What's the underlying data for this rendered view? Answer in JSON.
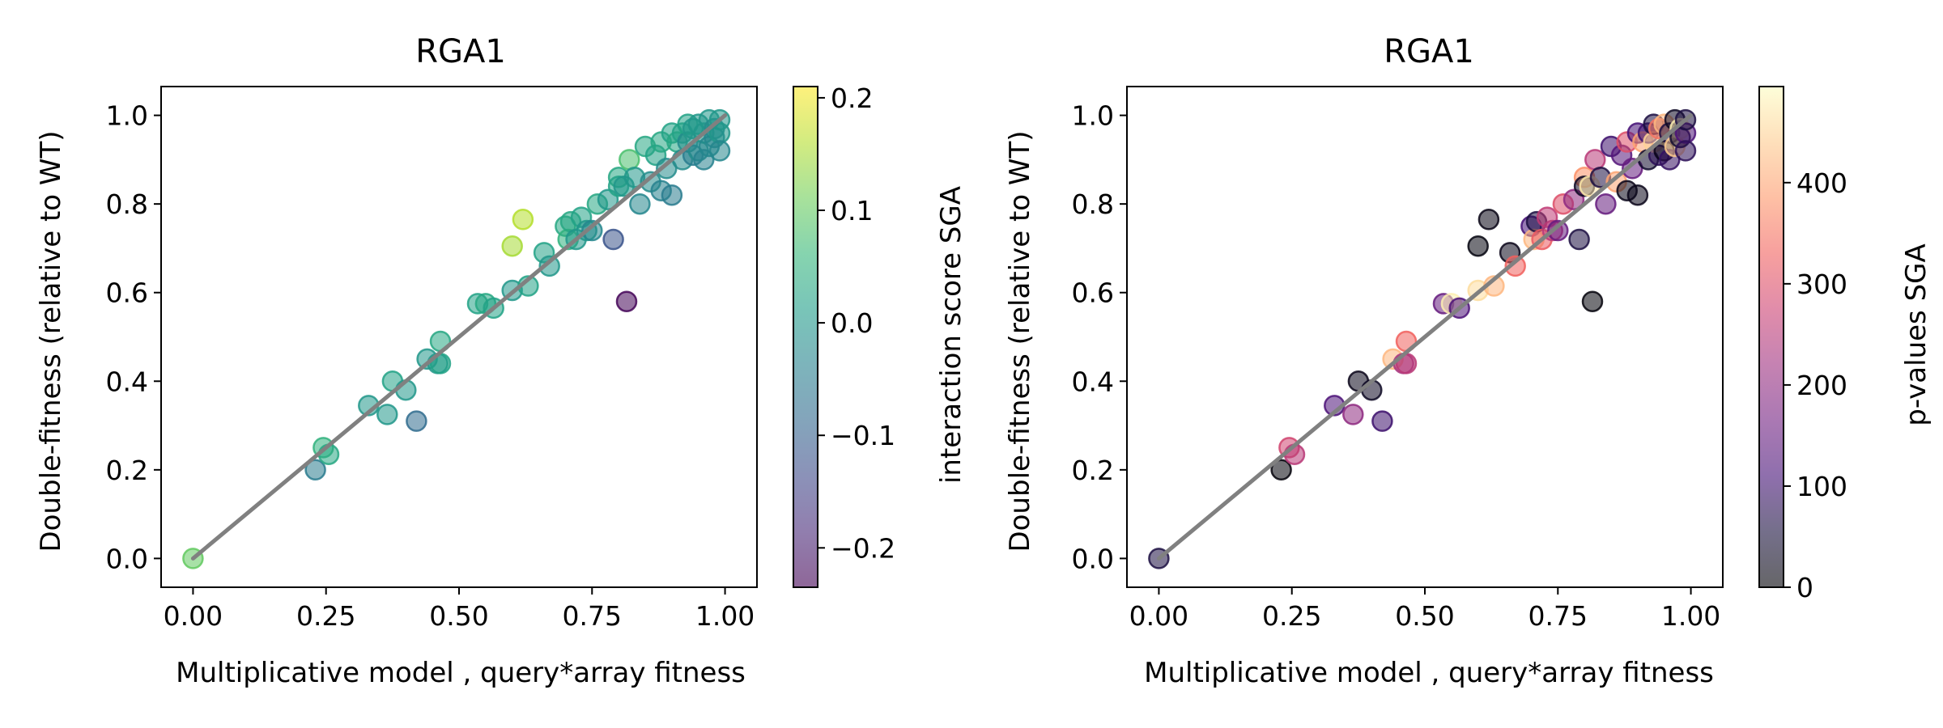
{
  "chart_data": [
    {
      "type": "scatter",
      "title": "RGA1",
      "xlabel": "Multiplicative model , query*array fitness",
      "ylabel": "Double-fitness (relative to WT)",
      "xlim": [
        -0.06,
        1.06
      ],
      "ylim": [
        -0.065,
        1.065
      ],
      "xticks": [
        0.0,
        0.25,
        0.5,
        0.75,
        1.0
      ],
      "xtick_labels": [
        "0.00",
        "0.25",
        "0.50",
        "0.75",
        "1.00"
      ],
      "yticks": [
        0.0,
        0.2,
        0.4,
        0.6,
        0.8,
        1.0
      ],
      "ytick_labels": [
        "0.0",
        "0.2",
        "0.4",
        "0.6",
        "0.8",
        "1.0"
      ],
      "reference_line": {
        "x": [
          0.0,
          1.0
        ],
        "y": [
          0.0,
          1.0
        ],
        "color": "#808080"
      },
      "colorbar": {
        "label": "interaction score SGA",
        "colormap": "viridis",
        "range": [
          -0.235,
          0.21
        ],
        "ticks": [
          -0.2,
          -0.1,
          0.0,
          0.1,
          0.2
        ],
        "tick_labels": [
          "−0.2",
          "−0.1",
          "0.0",
          "0.1",
          "0.2"
        ]
      },
      "grid": false,
      "points": {
        "x": [
          0.0,
          0.23,
          0.245,
          0.255,
          0.33,
          0.365,
          0.375,
          0.4,
          0.42,
          0.44,
          0.46,
          0.465,
          0.465,
          0.535,
          0.55,
          0.565,
          0.6,
          0.6,
          0.62,
          0.63,
          0.66,
          0.67,
          0.7,
          0.705,
          0.71,
          0.72,
          0.73,
          0.74,
          0.75,
          0.76,
          0.78,
          0.79,
          0.8,
          0.8,
          0.81,
          0.815,
          0.82,
          0.83,
          0.84,
          0.85,
          0.86,
          0.87,
          0.88,
          0.88,
          0.89,
          0.9,
          0.9,
          0.91,
          0.92,
          0.92,
          0.93,
          0.93,
          0.94,
          0.94,
          0.95,
          0.95,
          0.96,
          0.96,
          0.97,
          0.97,
          0.98,
          0.98,
          0.99,
          0.99,
          0.99
        ],
        "y": [
          0.0,
          0.2,
          0.25,
          0.235,
          0.345,
          0.325,
          0.4,
          0.38,
          0.31,
          0.45,
          0.44,
          0.49,
          0.44,
          0.575,
          0.575,
          0.565,
          0.605,
          0.705,
          0.765,
          0.615,
          0.69,
          0.66,
          0.75,
          0.72,
          0.76,
          0.72,
          0.77,
          0.74,
          0.74,
          0.8,
          0.81,
          0.72,
          0.86,
          0.84,
          0.84,
          0.58,
          0.9,
          0.86,
          0.8,
          0.93,
          0.85,
          0.91,
          0.83,
          0.94,
          0.88,
          0.96,
          0.82,
          0.94,
          0.9,
          0.96,
          0.94,
          0.98,
          0.97,
          0.91,
          0.92,
          0.98,
          0.96,
          0.9,
          0.93,
          0.99,
          0.97,
          0.95,
          0.96,
          0.99,
          0.92
        ],
        "color_values": [
          0.1,
          -0.05,
          0.05,
          0.03,
          0.0,
          0.0,
          0.02,
          0.0,
          -0.08,
          0.0,
          0.0,
          0.03,
          0.02,
          0.02,
          0.03,
          0.02,
          0.0,
          0.15,
          0.16,
          0.02,
          0.02,
          0.0,
          0.03,
          0.05,
          0.03,
          0.0,
          0.02,
          0.0,
          -0.03,
          0.03,
          0.0,
          -0.12,
          0.03,
          0.02,
          0.0,
          -0.23,
          0.08,
          0.0,
          -0.03,
          0.03,
          -0.02,
          0.02,
          -0.04,
          0.03,
          -0.02,
          0.02,
          -0.05,
          0.03,
          -0.02,
          0.02,
          -0.02,
          0.02,
          0.0,
          -0.05,
          -0.02,
          0.0,
          0.0,
          -0.04,
          -0.03,
          0.0,
          -0.02,
          -0.03,
          0.0,
          0.0,
          -0.03
        ]
      }
    },
    {
      "type": "scatter",
      "title": "RGA1",
      "xlabel": "Multiplicative model , query*array fitness",
      "ylabel": "Double-fitness (relative to WT)",
      "xlim": [
        -0.06,
        1.06
      ],
      "ylim": [
        -0.065,
        1.065
      ],
      "xticks": [
        0.0,
        0.25,
        0.5,
        0.75,
        1.0
      ],
      "xtick_labels": [
        "0.00",
        "0.25",
        "0.50",
        "0.75",
        "1.00"
      ],
      "yticks": [
        0.0,
        0.2,
        0.4,
        0.6,
        0.8,
        1.0
      ],
      "ytick_labels": [
        "0.0",
        "0.2",
        "0.4",
        "0.6",
        "0.8",
        "1.0"
      ],
      "reference_line": {
        "x": [
          0.0,
          1.0
        ],
        "y": [
          0.0,
          1.0
        ],
        "color": "#808080"
      },
      "colorbar": {
        "label": "p-values SGA",
        "colormap": "magma",
        "range": [
          0,
          495
        ],
        "ticks": [
          0,
          100,
          200,
          300,
          400
        ],
        "tick_labels": [
          "0",
          "100",
          "200",
          "300",
          "400"
        ]
      },
      "grid": false,
      "points": {
        "x": [
          0.0,
          0.23,
          0.245,
          0.255,
          0.33,
          0.365,
          0.375,
          0.4,
          0.42,
          0.44,
          0.46,
          0.465,
          0.465,
          0.535,
          0.55,
          0.565,
          0.6,
          0.6,
          0.62,
          0.63,
          0.66,
          0.67,
          0.7,
          0.705,
          0.71,
          0.72,
          0.73,
          0.74,
          0.75,
          0.76,
          0.78,
          0.79,
          0.8,
          0.8,
          0.81,
          0.815,
          0.82,
          0.83,
          0.84,
          0.85,
          0.86,
          0.87,
          0.88,
          0.88,
          0.89,
          0.9,
          0.9,
          0.91,
          0.92,
          0.92,
          0.93,
          0.93,
          0.94,
          0.94,
          0.95,
          0.95,
          0.96,
          0.96,
          0.97,
          0.97,
          0.98,
          0.98,
          0.99,
          0.99,
          0.99
        ],
        "y": [
          0.0,
          0.2,
          0.25,
          0.235,
          0.345,
          0.325,
          0.4,
          0.38,
          0.31,
          0.45,
          0.44,
          0.49,
          0.44,
          0.575,
          0.575,
          0.565,
          0.605,
          0.705,
          0.765,
          0.615,
          0.69,
          0.66,
          0.75,
          0.72,
          0.76,
          0.72,
          0.77,
          0.74,
          0.74,
          0.8,
          0.81,
          0.72,
          0.86,
          0.84,
          0.84,
          0.58,
          0.9,
          0.86,
          0.8,
          0.93,
          0.85,
          0.91,
          0.83,
          0.94,
          0.88,
          0.96,
          0.82,
          0.94,
          0.9,
          0.96,
          0.94,
          0.98,
          0.97,
          0.91,
          0.92,
          0.98,
          0.96,
          0.9,
          0.93,
          0.99,
          0.97,
          0.95,
          0.96,
          0.99,
          0.92
        ],
        "color_values": [
          60,
          5,
          280,
          250,
          120,
          200,
          20,
          30,
          100,
          420,
          230,
          330,
          250,
          150,
          480,
          120,
          460,
          10,
          15,
          420,
          20,
          330,
          110,
          420,
          60,
          320,
          260,
          250,
          150,
          300,
          200,
          60,
          380,
          30,
          470,
          5,
          250,
          60,
          150,
          100,
          400,
          130,
          20,
          300,
          150,
          110,
          20,
          400,
          40,
          100,
          450,
          60,
          350,
          80,
          20,
          420,
          60,
          90,
          440,
          30,
          480,
          40,
          120,
          60,
          80
        ]
      }
    }
  ]
}
